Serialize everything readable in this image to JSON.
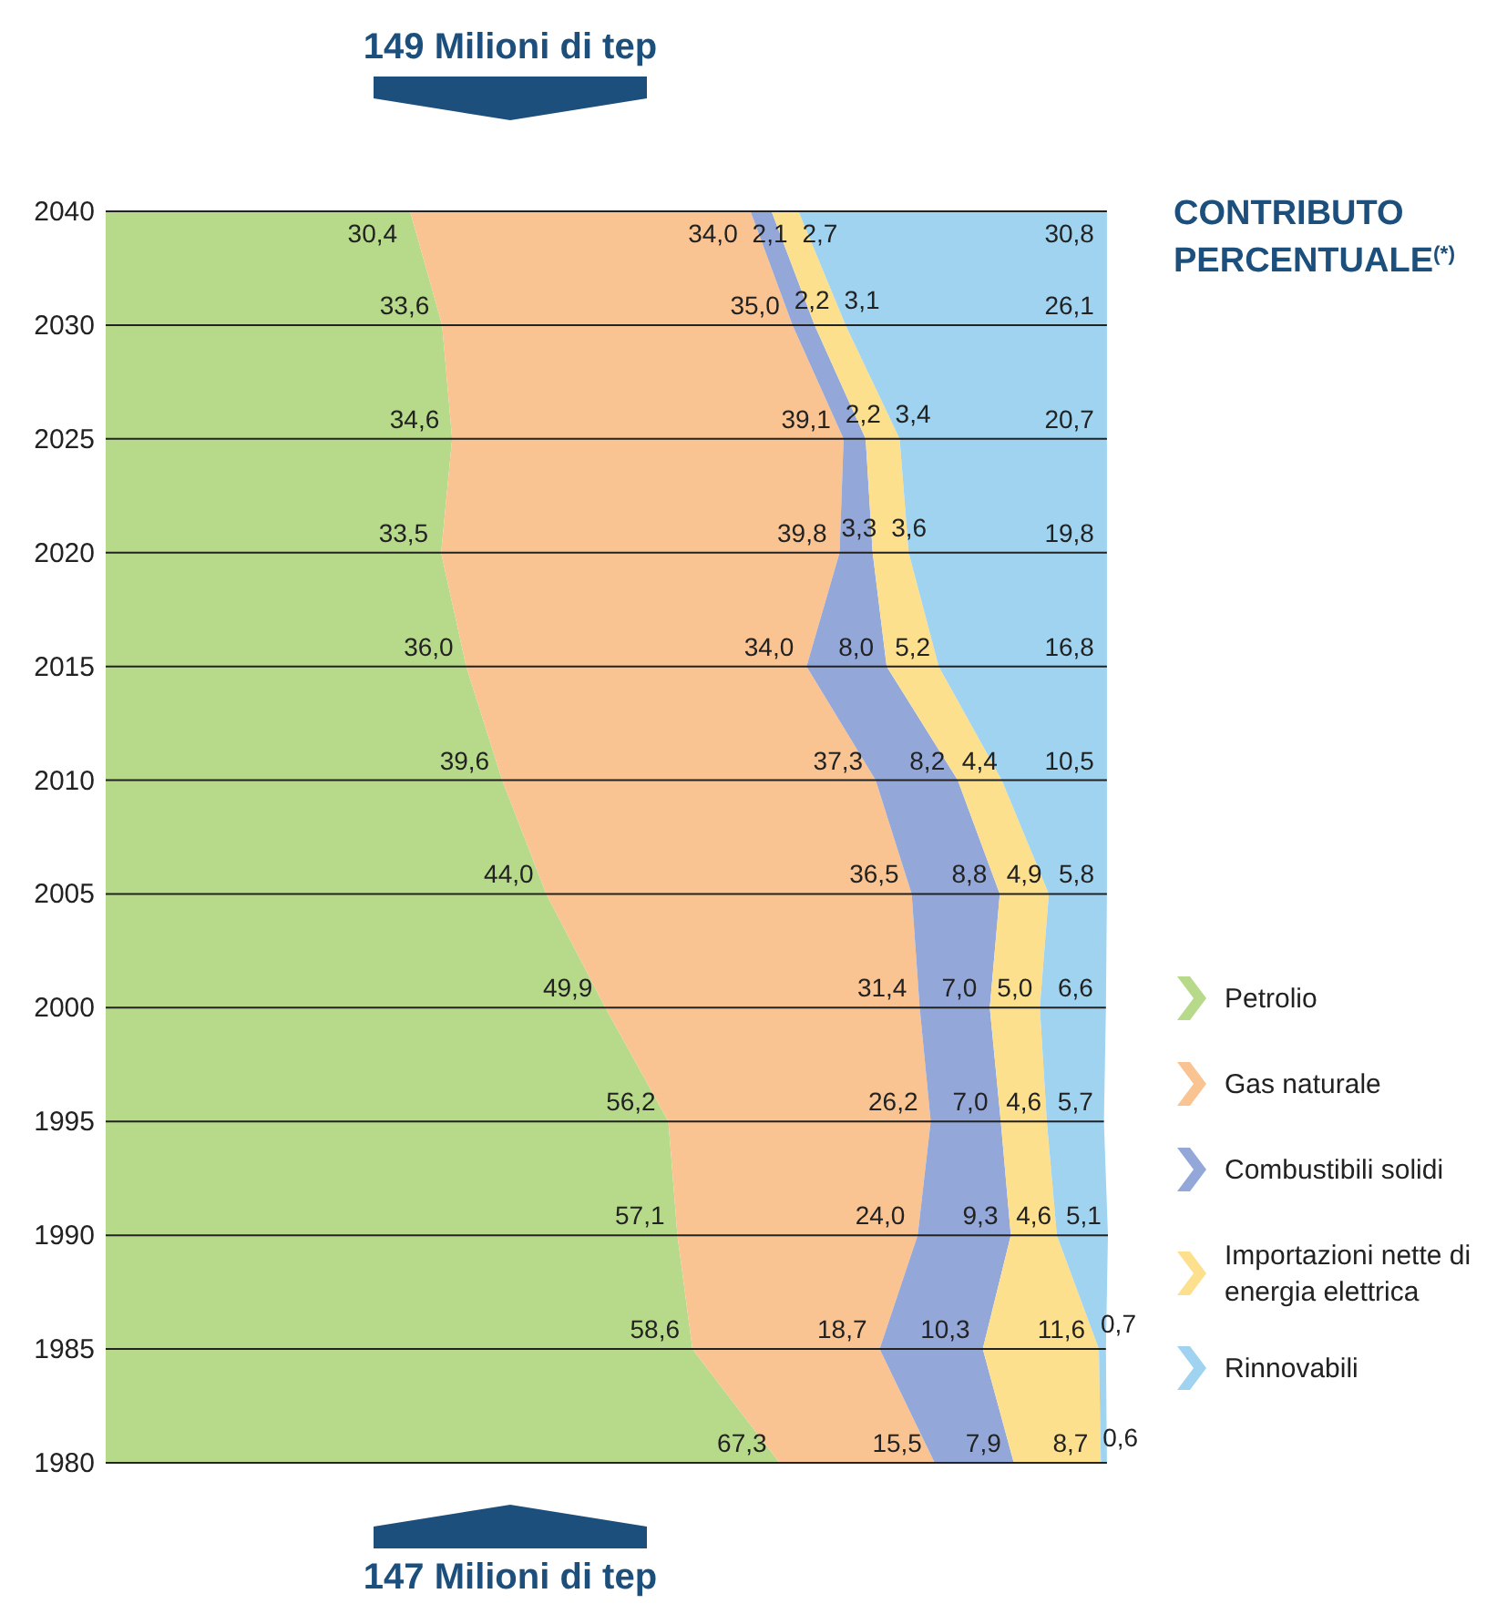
{
  "chart_data": {
    "type": "area",
    "orientation": "horizontal",
    "stacked": true,
    "grid": "y",
    "legend": "right",
    "legend_title": "CONTRIBUTO PERCENTUALE$^{(*)}$",
    "categories": [
      "2040",
      "2030",
      "2025",
      "2020",
      "2015",
      "2010",
      "2005",
      "2000",
      "1995",
      "1990",
      "1985",
      "1980"
    ],
    "series": [
      {
        "name": "Petrolio",
        "color": "#b6d98a",
        "values": [
          30.4,
          33.6,
          34.6,
          33.5,
          36.0,
          39.6,
          44.0,
          49.9,
          56.2,
          57.1,
          58.6,
          67.3
        ],
        "value_labels": [
          "30,4",
          "33,6",
          "34,6",
          "33,5",
          "36,0",
          "39,6",
          "44,0",
          "49,9",
          "56,2",
          "57,1",
          "58,6",
          "67,3"
        ]
      },
      {
        "name": "Gas naturale",
        "color": "#f9c492",
        "values": [
          34.0,
          35.0,
          39.1,
          39.8,
          34.0,
          37.3,
          36.5,
          31.4,
          26.2,
          24.0,
          18.7,
          15.5
        ],
        "value_labels": [
          "34,0",
          "35,0",
          "39,1",
          "39,8",
          "34,0",
          "37,3",
          "36,5",
          "31,4",
          "26,2",
          "24,0",
          "18,7",
          "15,5"
        ]
      },
      {
        "name": "Combustibili solidi",
        "color": "#93a7d9",
        "values": [
          2.1,
          2.2,
          2.2,
          3.3,
          8.0,
          8.2,
          8.8,
          7.0,
          7.0,
          9.3,
          10.3,
          7.9
        ],
        "value_labels": [
          "2,1",
          "2,2",
          "2,2",
          "3,3",
          "8,0",
          "8,2",
          "8,8",
          "7,0",
          "7,0",
          "9,3",
          "10,3",
          "7,9"
        ]
      },
      {
        "name": "Importazioni nette di energia elettrica",
        "color": "#fde08e",
        "values": [
          2.7,
          3.1,
          3.4,
          3.6,
          5.2,
          4.4,
          4.9,
          5.0,
          4.6,
          4.6,
          11.6,
          8.7
        ],
        "value_labels": [
          "2,7",
          "3,1",
          "3,4",
          "3,6",
          "5,2",
          "4,4",
          "4,9",
          "5,0",
          "4,6",
          "4,6",
          "11,6",
          "8,7"
        ]
      },
      {
        "name": "Rinnovabili",
        "color": "#9fd3f0",
        "values": [
          30.8,
          26.1,
          20.7,
          19.8,
          16.8,
          10.5,
          5.8,
          6.6,
          5.7,
          5.1,
          0.7,
          0.6
        ],
        "value_labels": [
          "30,8",
          "26,1",
          "20,7",
          "19,8",
          "16,8",
          "10,5",
          "5,8",
          "6,6",
          "5,7",
          "5,1",
          "0,7",
          "0,6"
        ]
      }
    ],
    "annotations": [
      "149 Milioni di tep",
      "147 Milioni di tep"
    ]
  }
}
